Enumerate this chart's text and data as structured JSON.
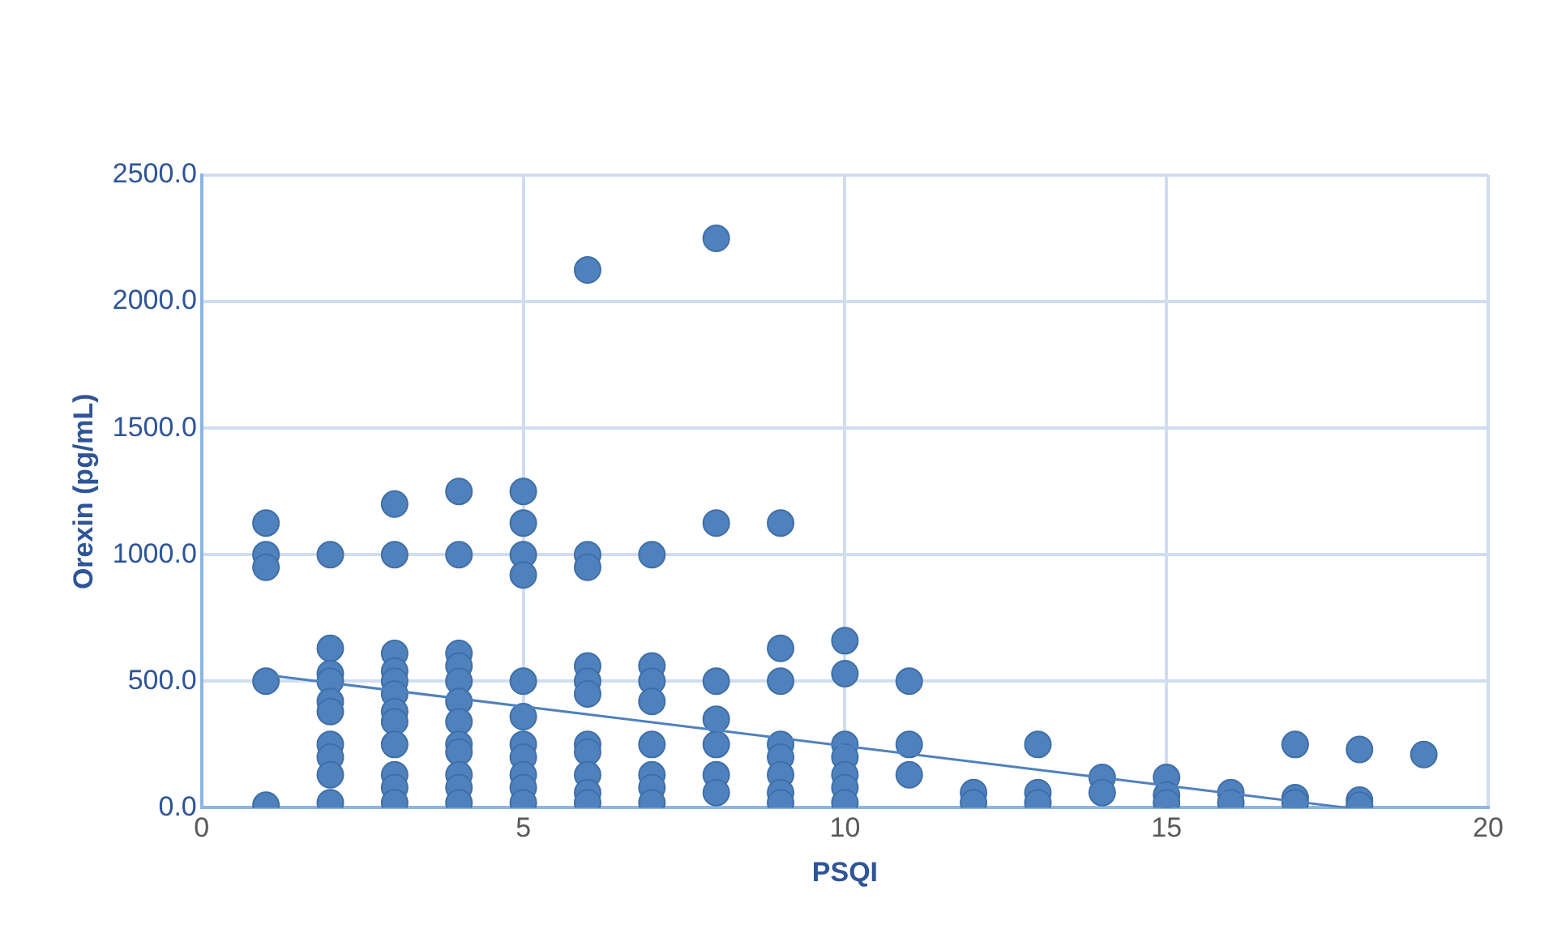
{
  "chart_data": {
    "type": "scatter",
    "xlabel": "PSQI",
    "ylabel": "Orexin (pg/mL)",
    "xlim": [
      0,
      20
    ],
    "xticks": [
      0,
      5,
      10,
      15,
      20
    ],
    "ylim": [
      0,
      2500
    ],
    "yticks": [
      {
        "value": 0,
        "label": "0.0"
      },
      {
        "value": 500,
        "label": "500.0"
      },
      {
        "value": 1000,
        "label": "1000.0"
      },
      {
        "value": 1500,
        "label": "1500.0"
      },
      {
        "value": 2000,
        "label": "2000.0"
      },
      {
        "value": 2500,
        "label": "2500.0"
      }
    ],
    "grid": true,
    "legend": false,
    "marker": "circle",
    "series": [
      {
        "color": "#4f81bd",
        "x": [
          1,
          1,
          1,
          1,
          1,
          2,
          2,
          2,
          2,
          2,
          2,
          2,
          2,
          2,
          2,
          3,
          3,
          3,
          3,
          3,
          3,
          3,
          3,
          3,
          3,
          3,
          3,
          4,
          4,
          4,
          4,
          4,
          4,
          4,
          4,
          4,
          4,
          4,
          4,
          5,
          5,
          5,
          5,
          5,
          5,
          5,
          5,
          5,
          5,
          5,
          6,
          6,
          6,
          6,
          6,
          6,
          6,
          6,
          6,
          6,
          6,
          7,
          7,
          7,
          7,
          7,
          7,
          7,
          7,
          8,
          8,
          8,
          8,
          8,
          8,
          8,
          9,
          9,
          9,
          9,
          9,
          9,
          9,
          9,
          10,
          10,
          10,
          10,
          10,
          10,
          10,
          11,
          11,
          11,
          12,
          12,
          13,
          13,
          13,
          14,
          14,
          15,
          15,
          15,
          16,
          16,
          17,
          17,
          17,
          18,
          18,
          18,
          19
        ],
        "values": [
          1125,
          1000,
          950,
          500,
          10,
          1000,
          630,
          530,
          500,
          420,
          380,
          250,
          200,
          130,
          20,
          1200,
          1000,
          610,
          540,
          500,
          450,
          380,
          340,
          250,
          130,
          80,
          20,
          1250,
          1000,
          610,
          560,
          500,
          420,
          340,
          250,
          220,
          130,
          80,
          20,
          1250,
          1125,
          1000,
          920,
          500,
          360,
          250,
          200,
          130,
          80,
          20,
          2125,
          1000,
          950,
          560,
          500,
          450,
          250,
          220,
          130,
          60,
          20,
          1000,
          560,
          500,
          420,
          250,
          130,
          80,
          20,
          2250,
          1125,
          500,
          350,
          250,
          130,
          60,
          1125,
          630,
          500,
          250,
          200,
          130,
          60,
          20,
          660,
          530,
          250,
          200,
          130,
          80,
          20,
          500,
          250,
          130,
          60,
          20,
          250,
          60,
          20,
          120,
          60,
          120,
          50,
          20,
          60,
          20,
          250,
          40,
          20,
          230,
          30,
          10,
          210
        ]
      },
      {
        "type": "line",
        "color": "#4f81bd",
        "marker": "none",
        "x": [
          1,
          17.8
        ],
        "values": [
          525,
          0
        ]
      }
    ]
  }
}
